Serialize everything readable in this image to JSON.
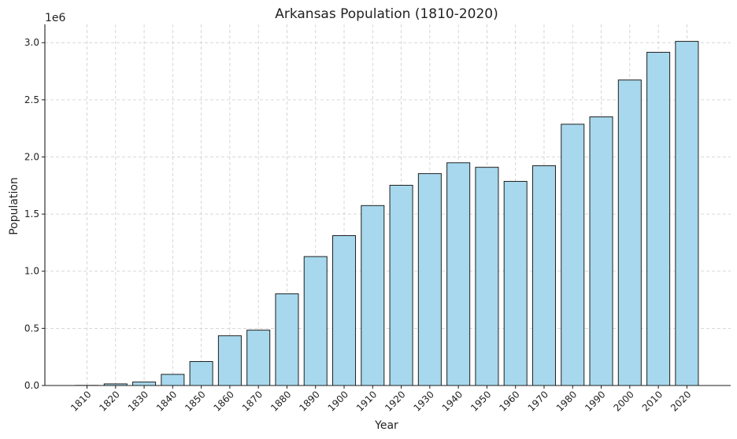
{
  "chart_data": {
    "type": "bar",
    "title": "Arkansas Population (1810-2020)",
    "xlabel": "Year",
    "ylabel": "Population",
    "y_scale_label": "1e6",
    "categories": [
      "1810",
      "1820",
      "1830",
      "1840",
      "1850",
      "1860",
      "1870",
      "1880",
      "1890",
      "1900",
      "1910",
      "1920",
      "1930",
      "1940",
      "1950",
      "1960",
      "1970",
      "1980",
      "1990",
      "2000",
      "2010",
      "2020"
    ],
    "values": [
      1062,
      14273,
      30388,
      97574,
      209897,
      435450,
      484471,
      802525,
      1128211,
      1311564,
      1574449,
      1752204,
      1854482,
      1949387,
      1909511,
      1786272,
      1923295,
      2286435,
      2350725,
      2673400,
      2915918,
      3011524
    ],
    "yticks": [
      "0.0",
      "0.5",
      "1.0",
      "1.5",
      "2.0",
      "2.5",
      "3.0"
    ],
    "ylim": [
      0,
      3160000
    ],
    "grid": true,
    "colors": {
      "bar_fill": "#a7d8ed",
      "bar_edge": "#1f1f1f",
      "grid": "#cccccc"
    }
  }
}
